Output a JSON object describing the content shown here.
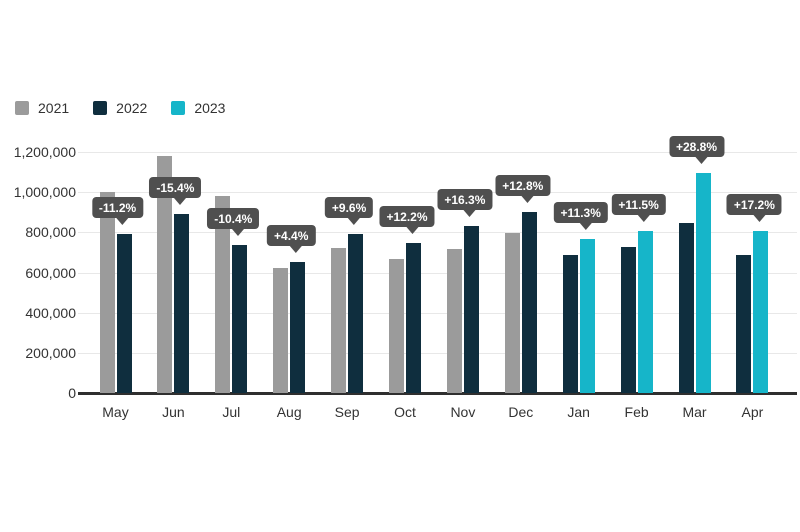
{
  "chart_data": {
    "type": "bar",
    "title": "",
    "xlabel": "",
    "ylabel": "",
    "categories": [
      "May",
      "Jun",
      "Jul",
      "Aug",
      "Sep",
      "Oct",
      "Nov",
      "Dec",
      "Jan",
      "Feb",
      "Mar",
      "Apr"
    ],
    "series": [
      {
        "name": "2021",
        "color": "#9b9b9b",
        "values": [
          1000000,
          1180000,
          980000,
          620000,
          720000,
          665000,
          715000,
          795000,
          null,
          null,
          null,
          null
        ]
      },
      {
        "name": "2022",
        "color": "#0f2e3e",
        "values": [
          790000,
          890000,
          735000,
          650000,
          790000,
          745000,
          830000,
          900000,
          685000,
          725000,
          845000,
          685000
        ]
      },
      {
        "name": "2023",
        "color": "#16b5c9",
        "values": [
          null,
          null,
          null,
          null,
          null,
          null,
          null,
          null,
          765000,
          805000,
          1095000,
          805000
        ]
      }
    ],
    "badges": [
      "-11.2%",
      "-15.4%",
      "-10.4%",
      "+4.4%",
      "+9.6%",
      "+12.2%",
      "+16.3%",
      "+12.8%",
      "+11.3%",
      "+11.5%",
      "+28.8%",
      "+17.2%"
    ],
    "badge_bg": "#4f4f4f",
    "badge_text_color": "#ffffff",
    "ylim": [
      0,
      1200000
    ],
    "ytick_step": 200000,
    "ytick_labels": [
      "0",
      "200,000",
      "400,000",
      "600,000",
      "800,000",
      "1,000,000",
      "1,200,000"
    ],
    "grid": true,
    "gridline_color": "#e8e8e8",
    "axis_color": "#2f2f2f",
    "text_color": "#333333",
    "legend_position": "top-left",
    "legend_entries": [
      "2021",
      "2022",
      "2023"
    ]
  }
}
